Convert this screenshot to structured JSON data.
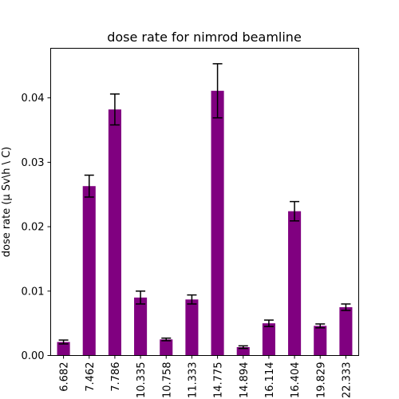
{
  "chart_data": {
    "type": "bar",
    "title": "dose rate for nimrod beamline",
    "xlabel": "",
    "ylabel": "dose rate (μ Sv\\h \\ C)",
    "categories": [
      "6.682",
      "7.462",
      "7.786",
      "10.335",
      "10.758",
      "11.333",
      "14.775",
      "14.894",
      "16.114",
      "16.404",
      "19.829",
      "22.333"
    ],
    "values": [
      0.0021,
      0.0263,
      0.0382,
      0.009,
      0.0025,
      0.0087,
      0.0411,
      0.0013,
      0.005,
      0.0224,
      0.0046,
      0.0075
    ],
    "errors": [
      0.0003,
      0.0017,
      0.0024,
      0.001,
      0.0002,
      0.0007,
      0.0042,
      0.0002,
      0.0005,
      0.0015,
      0.0003,
      0.0005
    ],
    "ylim": [
      0,
      0.0477
    ],
    "yticks": [
      0.0,
      0.01,
      0.02,
      0.03,
      0.04
    ],
    "ytick_labels": [
      "0.00",
      "0.01",
      "0.02",
      "0.03",
      "0.04"
    ],
    "bar_color": "#800080",
    "errorbar_color": "#000000",
    "grid": false,
    "legend": "none"
  }
}
